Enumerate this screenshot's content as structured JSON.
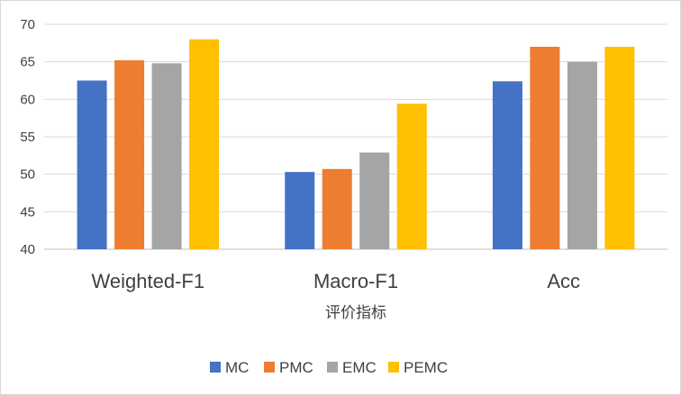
{
  "chart_data": {
    "type": "bar",
    "categories": [
      "Weighted-F1",
      "Macro-F1",
      "Acc"
    ],
    "series": [
      {
        "name": "MC",
        "color": "#4472C4",
        "values": [
          62.5,
          50.3,
          62.4
        ]
      },
      {
        "name": "PMC",
        "color": "#ED7D31",
        "values": [
          65.2,
          50.7,
          67.0
        ]
      },
      {
        "name": "EMC",
        "color": "#A5A5A5",
        "values": [
          64.8,
          52.9,
          65.0
        ]
      },
      {
        "name": "PEMC",
        "color": "#FFC000",
        "values": [
          68.0,
          59.4,
          67.0
        ]
      }
    ],
    "xlabel": "评价指标",
    "ylabel": "",
    "ylim": [
      40,
      70
    ],
    "yticks": [
      40,
      45,
      50,
      55,
      60,
      65,
      70
    ],
    "grid": true,
    "legend": "bottom"
  }
}
